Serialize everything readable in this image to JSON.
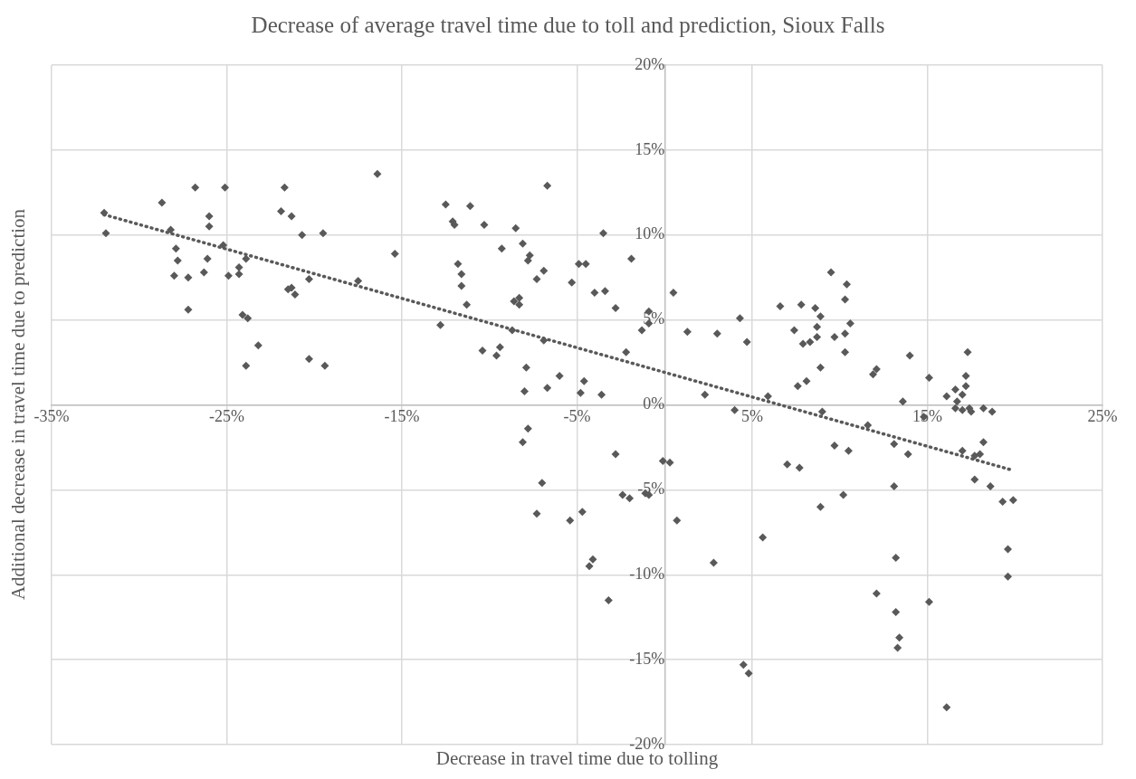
{
  "chart_data": {
    "type": "scatter",
    "title": "Decrease of average travel time due to toll and prediction, Sioux Falls",
    "xlabel": "Decrease in travel time due to tolling",
    "ylabel": "Additional decrease in travel time due to prediction",
    "xlim": [
      -35,
      25
    ],
    "xticks": [
      {
        "value": -35,
        "label": "-35%"
      },
      {
        "value": -25,
        "label": "-25%"
      },
      {
        "value": -15,
        "label": "-15%"
      },
      {
        "value": -5,
        "label": "-5%"
      },
      {
        "value": 5,
        "label": "5%"
      },
      {
        "value": 15,
        "label": "15%"
      },
      {
        "value": 25,
        "label": "25%"
      }
    ],
    "ylim": [
      -20,
      20
    ],
    "yticks": [
      {
        "value": -20,
        "label": "-20%"
      },
      {
        "value": -15,
        "label": "-15%"
      },
      {
        "value": -10,
        "label": "-10%"
      },
      {
        "value": -5,
        "label": "-5%"
      },
      {
        "value": 0,
        "label": "0%"
      },
      {
        "value": 5,
        "label": "5%"
      },
      {
        "value": 10,
        "label": "10%"
      },
      {
        "value": 15,
        "label": "15%"
      },
      {
        "value": 20,
        "label": "20%"
      }
    ],
    "grid": true,
    "legend": false,
    "marker": "diamond",
    "series": [
      {
        "color": "#595959",
        "x": [
          -32.0,
          -31.9,
          -28.7,
          -26.8,
          -25.1,
          -28.2,
          -26.0,
          -26.0,
          -25.2,
          -27.9,
          -27.8,
          -28.0,
          -27.2,
          -26.3,
          -26.1,
          -27.2,
          -24.9,
          -24.3,
          -24.3,
          -23.9,
          -24.1,
          -23.8,
          -23.2,
          -23.9,
          -21.7,
          -21.9,
          -21.3,
          -20.7,
          -19.5,
          -20.3,
          -21.5,
          -21.3,
          -21.1,
          -20.3,
          -19.4,
          -16.4,
          -15.4,
          -17.5,
          -12.5,
          -11.1,
          -12.1,
          -12.0,
          -10.3,
          -8.5,
          -6.7,
          -8.1,
          -9.3,
          -7.7,
          -7.8,
          -11.8,
          -11.6,
          -11.6,
          -11.3,
          -12.8,
          -6.9,
          -7.3,
          -5.3,
          -4.9,
          -4.5,
          -3.5,
          -4.0,
          -3.4,
          -2.8,
          -8.6,
          -8.3,
          -8.3,
          -8.7,
          -6.9,
          -10.4,
          -9.4,
          -9.6,
          -7.9,
          -6.0,
          -4.6,
          -8.0,
          -6.7,
          -4.8,
          -3.6,
          -1.9,
          -2.2,
          -1.3,
          -0.9,
          -0.9,
          0.5,
          1.3,
          3.0,
          4.3,
          4.7,
          2.3,
          4.0,
          5.9,
          -7.8,
          -8.1,
          -7.0,
          -7.3,
          -5.4,
          -4.7,
          -4.3,
          -4.1,
          -3.2,
          -2.8,
          -2.4,
          -2.0,
          -1.1,
          -0.9,
          -0.1,
          0.3,
          0.7,
          2.8,
          4.5,
          4.8,
          5.6,
          9.5,
          10.4,
          10.3,
          6.6,
          7.8,
          8.6,
          8.9,
          10.6,
          7.4,
          8.7,
          8.7,
          7.9,
          8.3,
          9.7,
          10.3,
          10.3,
          8.9,
          7.6,
          8.1,
          11.9,
          12.1,
          14.0,
          15.1,
          13.6,
          17.3,
          17.2,
          17.2,
          16.1,
          16.6,
          17.0,
          16.7,
          16.6,
          17.0,
          17.4,
          17.5,
          18.2,
          18.7,
          9.0,
          14.8,
          11.6,
          13.1,
          13.9,
          9.7,
          10.5,
          7.0,
          7.7,
          17.0,
          18.2,
          17.7,
          18.0,
          17.7,
          18.6,
          19.3,
          19.9,
          13.1,
          10.2,
          8.9,
          13.2,
          19.6,
          19.6,
          12.1,
          15.1,
          13.2,
          13.4,
          13.3,
          16.1
        ],
        "values": [
          11.3,
          10.1,
          11.9,
          12.8,
          12.8,
          10.3,
          11.1,
          10.5,
          9.4,
          9.2,
          8.5,
          7.6,
          7.5,
          7.8,
          8.6,
          5.6,
          7.6,
          8.1,
          7.7,
          8.6,
          5.3,
          5.1,
          3.5,
          2.3,
          12.8,
          11.4,
          11.1,
          10.0,
          10.1,
          7.4,
          6.8,
          6.9,
          6.5,
          2.7,
          2.3,
          13.6,
          8.9,
          7.3,
          11.8,
          11.7,
          10.8,
          10.6,
          10.6,
          10.4,
          12.9,
          9.5,
          9.2,
          8.8,
          8.5,
          8.3,
          7.7,
          7.0,
          5.9,
          4.7,
          7.9,
          7.4,
          7.2,
          8.3,
          8.3,
          10.1,
          6.6,
          6.7,
          5.7,
          6.1,
          6.3,
          5.9,
          4.4,
          3.8,
          3.2,
          3.4,
          2.9,
          2.2,
          1.7,
          1.4,
          0.8,
          1.0,
          0.7,
          0.6,
          8.6,
          3.1,
          4.4,
          5.5,
          4.8,
          6.6,
          4.3,
          4.2,
          5.1,
          3.7,
          0.6,
          -0.3,
          0.5,
          -1.4,
          -2.2,
          -4.6,
          -6.4,
          -6.8,
          -6.3,
          -9.5,
          -9.1,
          -11.5,
          -2.9,
          -5.3,
          -5.5,
          -5.2,
          -5.3,
          -3.3,
          -3.4,
          -6.8,
          -9.3,
          -15.3,
          -15.8,
          -7.8,
          7.8,
          7.1,
          6.2,
          5.8,
          5.9,
          5.7,
          5.2,
          4.8,
          4.4,
          4.6,
          4.0,
          3.6,
          3.7,
          4.0,
          4.2,
          3.1,
          2.2,
          1.1,
          1.4,
          1.8,
          2.1,
          2.9,
          1.6,
          0.2,
          3.1,
          1.7,
          1.1,
          0.5,
          0.9,
          0.6,
          0.2,
          -0.2,
          -0.3,
          -0.2,
          -0.4,
          -0.2,
          -0.4,
          -0.4,
          -0.7,
          -1.2,
          -2.3,
          -2.9,
          -2.4,
          -2.7,
          -3.5,
          -3.7,
          -2.7,
          -2.2,
          -3.0,
          -2.9,
          -4.4,
          -4.8,
          -5.7,
          -5.6,
          -4.8,
          -5.3,
          -6.0,
          -9.0,
          -8.5,
          -10.1,
          -11.1,
          -11.6,
          -12.2,
          -13.7,
          -14.3,
          -17.8
        ]
      },
      {
        "type": "line",
        "color": "#595959",
        "line_style": "dotted",
        "marker": "none",
        "x": [
          -32.0,
          19.7
        ],
        "values": [
          11.2,
          -3.8
        ]
      }
    ]
  }
}
